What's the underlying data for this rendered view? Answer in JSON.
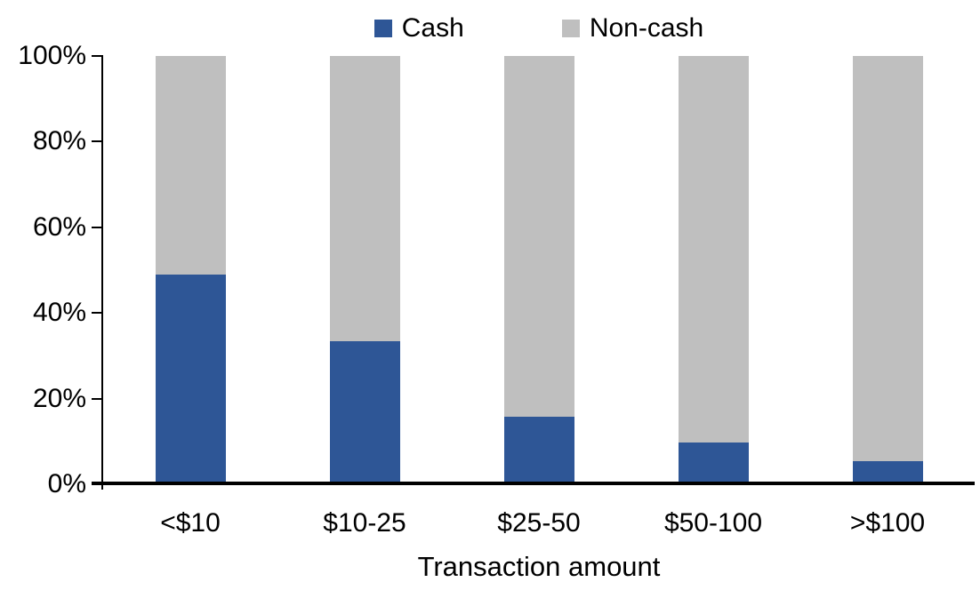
{
  "chart_data": {
    "type": "bar",
    "subtype": "stacked-100pct-column",
    "title": "",
    "xlabel": "Transaction amount",
    "ylabel": "",
    "categories": [
      "<$10",
      "$10-25",
      "$25-50",
      "$50-100",
      ">$100"
    ],
    "series": [
      {
        "name": "Cash",
        "color": "#2E5696",
        "values": [
          49,
          33.5,
          15.8,
          9.7,
          5.4
        ]
      },
      {
        "name": "Non-cash",
        "color": "#BFBFBF",
        "values": [
          51,
          66.5,
          84.2,
          90.3,
          94.6
        ]
      }
    ],
    "ylim": [
      0,
      100
    ],
    "y_ticks": [
      {
        "value": 0,
        "label": "0%"
      },
      {
        "value": 20,
        "label": "20%"
      },
      {
        "value": 40,
        "label": "40%"
      },
      {
        "value": 60,
        "label": "60%"
      },
      {
        "value": 80,
        "label": "80%"
      },
      {
        "value": 100,
        "label": "100%"
      }
    ],
    "grid": false,
    "legend_position": "top-center",
    "axis_color": "#000000",
    "background_color": "#ffffff"
  }
}
